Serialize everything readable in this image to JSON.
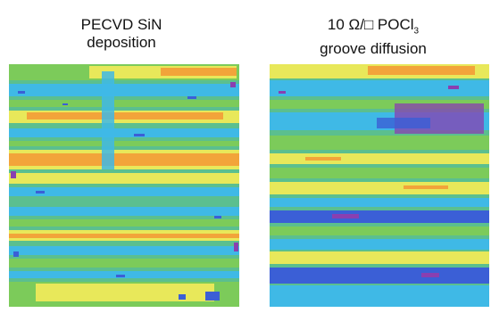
{
  "panels": [
    {
      "title_line1": "PECVD SiN",
      "title_line2": "deposition",
      "title_line2_sub": ""
    },
    {
      "title_line1": "10 Ω/□ POCl",
      "title_line1_sub": "3",
      "title_line2": "groove diffusion"
    }
  ],
  "colors": {
    "cyan": "#3fb9e6",
    "teal_green": "#5bbf8f",
    "green": "#7ccb5a",
    "yellow": "#e8e85a",
    "orange": "#f2a43a",
    "blue": "#3b5fd6",
    "purple": "#8a3fb0"
  }
}
